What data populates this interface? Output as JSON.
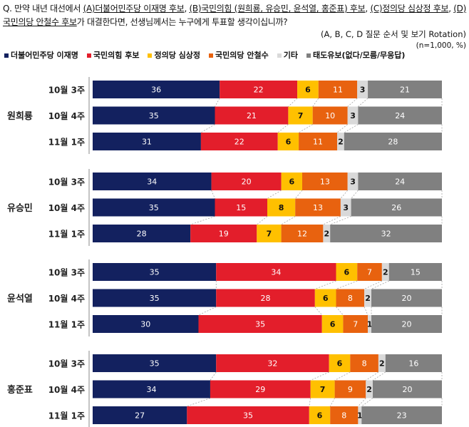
{
  "question": {
    "segments": [
      {
        "text": "Q. 만약 내년 대선에서 ",
        "u": false
      },
      {
        "text": "(A)더불어민주당 이재명 후보",
        "u": true
      },
      {
        "text": ", ",
        "u": false
      },
      {
        "text": "(B)국민의힘 (원희룡, 유승민, 윤석열, 홍준표) 후보",
        "u": true
      },
      {
        "text": ", ",
        "u": false
      },
      {
        "text": "(C)정의당 심상정 후보",
        "u": true
      },
      {
        "text": ", ",
        "u": false
      },
      {
        "text": "(D)국민의당 안철수 후보",
        "u": true
      },
      {
        "text": "가 대결한다면, 선생님께서는 누구에게 투표할 생각이십니까?",
        "u": false
      }
    ],
    "note": "(A, B, C, D 질문 순서 및 보기 Rotation)",
    "sample": "(n=1,000, %)"
  },
  "chart_data": {
    "type": "bar",
    "orientation": "horizontal-stacked-100",
    "legend_position": "top",
    "series": [
      {
        "name": "더불어민주당 이재명",
        "color": "#13215f"
      },
      {
        "name": "국민의힘 후보",
        "color": "#e31e2b"
      },
      {
        "name": "정의당 심상정",
        "color": "#ffc000"
      },
      {
        "name": "국민의당 안철수",
        "color": "#e8620f"
      },
      {
        "name": "기타",
        "color": "#d9d9d9"
      },
      {
        "name": "태도유보(없다/모름/무응답)",
        "color": "#808080"
      }
    ],
    "groups": [
      {
        "name": "원희룡",
        "rows": [
          {
            "label": "10월 3주",
            "values": [
              36,
              22,
              6,
              11,
              3,
              21
            ]
          },
          {
            "label": "10월 4주",
            "values": [
              35,
              21,
              7,
              10,
              3,
              24
            ]
          },
          {
            "label": "11월 1주",
            "values": [
              31,
              22,
              6,
              11,
              2,
              28
            ]
          }
        ]
      },
      {
        "name": "유승민",
        "rows": [
          {
            "label": "10월 3주",
            "values": [
              34,
              20,
              6,
              13,
              3,
              24
            ]
          },
          {
            "label": "10월 4주",
            "values": [
              35,
              15,
              8,
              13,
              3,
              26
            ]
          },
          {
            "label": "11월 1주",
            "values": [
              28,
              19,
              7,
              12,
              2,
              32
            ]
          }
        ]
      },
      {
        "name": "윤석열",
        "rows": [
          {
            "label": "10월 3주",
            "values": [
              35,
              34,
              6,
              7,
              2,
              15
            ]
          },
          {
            "label": "10월 4주",
            "values": [
              35,
              28,
              6,
              8,
              2,
              20
            ]
          },
          {
            "label": "11월 1주",
            "values": [
              30,
              35,
              6,
              7,
              1,
              20
            ]
          }
        ]
      },
      {
        "name": "홍준표",
        "rows": [
          {
            "label": "10월 3주",
            "values": [
              35,
              32,
              6,
              8,
              2,
              16
            ]
          },
          {
            "label": "10월 4주",
            "values": [
              34,
              29,
              7,
              9,
              2,
              20
            ]
          },
          {
            "label": "11월 1주",
            "values": [
              27,
              35,
              6,
              8,
              1,
              23
            ]
          }
        ]
      }
    ]
  }
}
